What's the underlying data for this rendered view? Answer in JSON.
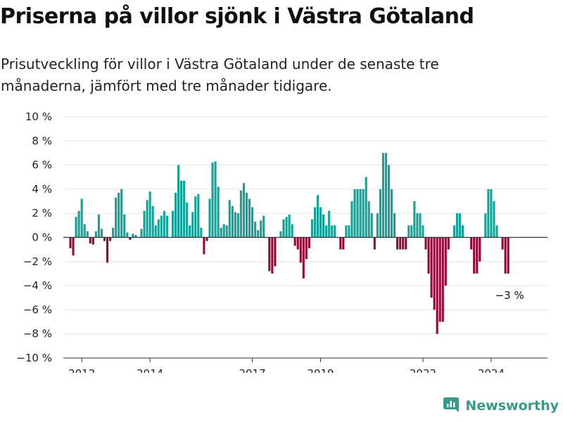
{
  "header": {
    "title": "Priserna på villor sjönk i Västra Götaland",
    "subtitle": "Prisutveckling för villor i Västra Götaland under de senaste tre månaderna, jämfört med tre månader tidigare."
  },
  "brand": {
    "name": "Newsworthy"
  },
  "colors": {
    "positive": "#14a197",
    "negative": "#950639",
    "grid": "#e3e3e3",
    "axis": "#333333",
    "brand": "#3a9a89"
  },
  "chart_data": {
    "type": "bar",
    "title": "Priserna på villor sjönk i Västra Götaland",
    "subtitle": "Prisutveckling för villor i Västra Götaland under de senaste tre månaderna, jämfört med tre månader tidigare.",
    "ylim": [
      -10,
      10
    ],
    "yticks": [
      10,
      8,
      6,
      4,
      2,
      0,
      -2,
      -4,
      -6,
      -8,
      -10
    ],
    "ytick_labels": [
      "10 %",
      "8 %",
      "6 %",
      "4 %",
      "2 %",
      "0 %",
      "−2 %",
      "−4 %",
      "−6 %",
      "−8 %",
      "−10 %"
    ],
    "x_start": "2011-09",
    "xticks": [
      "2012",
      "2014",
      "2017",
      "2019",
      "2022",
      "2024"
    ],
    "grid": true,
    "values": [
      -0.9,
      -1.5,
      1.7,
      2.2,
      3.2,
      1.1,
      0.5,
      -0.5,
      -0.6,
      0.5,
      1.9,
      0.7,
      -0.3,
      -2.1,
      -0.3,
      0.8,
      3.3,
      3.7,
      4.0,
      1.9,
      0.4,
      -0.2,
      0.3,
      0.2,
      0.0,
      0.7,
      2.2,
      3.1,
      3.8,
      2.6,
      1.0,
      1.5,
      1.8,
      2.2,
      1.8,
      0.0,
      2.2,
      3.7,
      6.0,
      4.7,
      4.7,
      2.9,
      1.0,
      2.1,
      3.4,
      3.6,
      0.8,
      -1.4,
      -0.3,
      3.2,
      6.2,
      6.3,
      4.2,
      0.8,
      1.1,
      1.0,
      3.1,
      2.6,
      2.1,
      2.0,
      3.9,
      4.5,
      3.7,
      3.2,
      2.5,
      1.3,
      0.6,
      1.4,
      1.8,
      0.0,
      -2.8,
      -3.0,
      -2.4,
      0.0,
      0.5,
      1.5,
      1.7,
      1.9,
      1.1,
      -0.7,
      -1.0,
      -2.1,
      -3.4,
      -1.8,
      -0.9,
      1.5,
      2.5,
      3.5,
      2.5,
      1.9,
      1.0,
      2.2,
      1.0,
      1.0,
      0.0,
      -1.0,
      -1.0,
      1.0,
      1.0,
      3.0,
      4.0,
      4.0,
      4.0,
      4.0,
      5.0,
      3.0,
      2.0,
      -1.0,
      2.0,
      4.0,
      7.0,
      7.0,
      6.0,
      4.0,
      2.0,
      -1.0,
      -1.0,
      -1.0,
      -1.0,
      1.0,
      1.0,
      3.0,
      2.0,
      2.0,
      1.0,
      -1.0,
      -3.0,
      -5.0,
      -6.0,
      -8.0,
      -7.0,
      -7.0,
      -4.0,
      -1.0,
      0.0,
      1.0,
      2.0,
      2.0,
      1.0,
      0.0,
      0.0,
      -1.0,
      -3.0,
      -3.0,
      -2.0,
      0.0,
      2.0,
      4.0,
      4.0,
      3.0,
      1.0,
      0.0,
      -1.0,
      -3.0,
      -3.0
    ],
    "annotation": {
      "text": "−3 %",
      "value": -3
    }
  }
}
